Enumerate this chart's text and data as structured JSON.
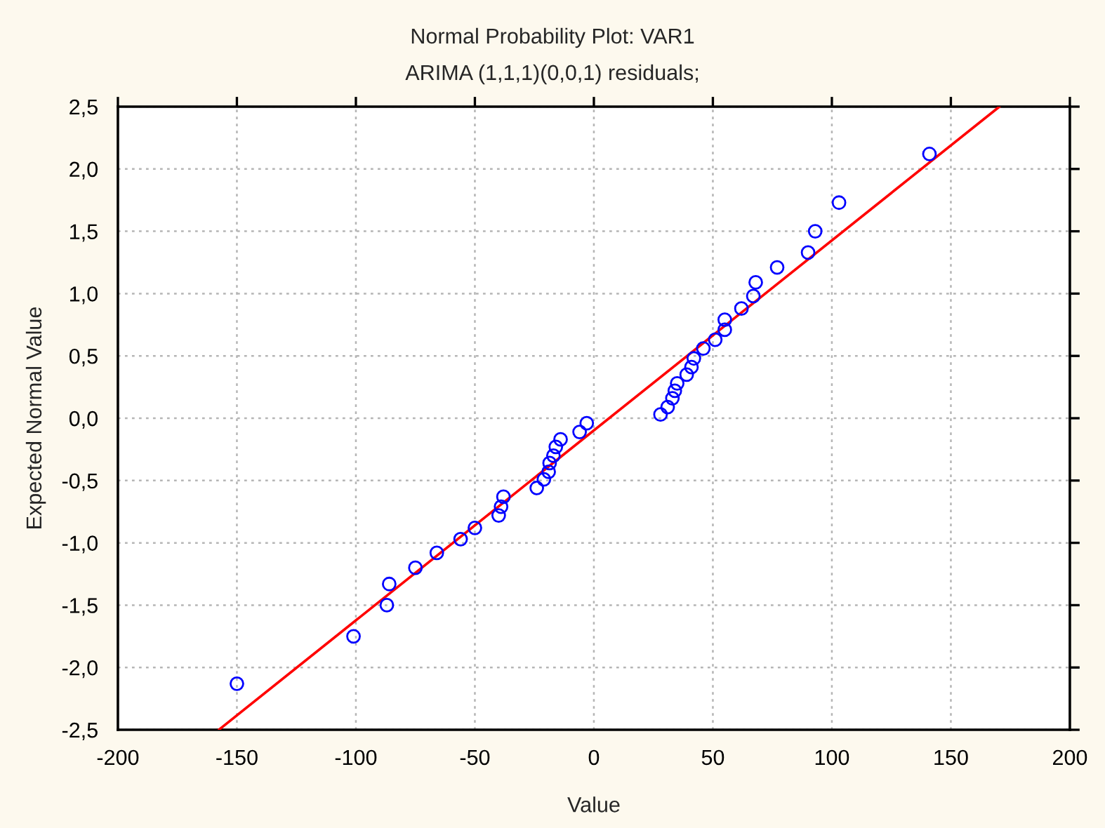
{
  "chart_data": {
    "type": "scatter",
    "title": "Normal Probability Plot: VAR1",
    "subtitle": "ARIMA (1,1,1)(0,0,1) residuals;",
    "xlabel": "Value",
    "ylabel": "Expected Normal Value",
    "series": [
      {
        "color": "#0000ff",
        "marker": "circle",
        "x": [
          -150,
          -101,
          -87,
          -86,
          -75,
          -66,
          -56,
          -50,
          -40,
          -39,
          -38,
          -24,
          -21,
          -19,
          -18.6,
          -17,
          -16,
          -14,
          -6,
          -3,
          28,
          31,
          33,
          34,
          35,
          39,
          41,
          42,
          46,
          51,
          55,
          55,
          62,
          67,
          68,
          77,
          90,
          93,
          103,
          141
        ],
        "values": [
          -2.13,
          -1.75,
          -1.5,
          -1.33,
          -1.2,
          -1.08,
          -0.97,
          -0.88,
          -0.78,
          -0.71,
          -0.63,
          -0.56,
          -0.49,
          -0.43,
          -0.36,
          -0.3,
          -0.23,
          -0.17,
          -0.11,
          -0.04,
          0.03,
          0.09,
          0.16,
          0.22,
          0.28,
          0.35,
          0.41,
          0.48,
          0.56,
          0.63,
          0.71,
          0.79,
          0.88,
          0.98,
          1.09,
          1.21,
          1.33,
          1.5,
          1.73,
          2.12
        ]
      },
      {
        "type": "line",
        "color": "#ff0000",
        "marker": "none",
        "line_style": "solid",
        "x": [
          -157.6,
          170.4
        ],
        "values": [
          -2.5,
          2.5
        ]
      }
    ],
    "xlim": [
      -200,
      200
    ],
    "xticks": [
      -200,
      -150,
      -100,
      -50,
      0,
      50,
      100,
      150,
      200
    ],
    "ylim": [
      -2.5,
      2.5
    ],
    "yticks": [
      {
        "value": -2.5,
        "label": "-2,5"
      },
      {
        "value": -2.0,
        "label": "-2,0"
      },
      {
        "value": -1.5,
        "label": "-1,5"
      },
      {
        "value": -1.0,
        "label": "-1,0"
      },
      {
        "value": -0.5,
        "label": "-0,5"
      },
      {
        "value": 0.0,
        "label": "0,0"
      },
      {
        "value": 0.5,
        "label": "0,5"
      },
      {
        "value": 1.0,
        "label": "1,0"
      },
      {
        "value": 1.5,
        "label": "1,5"
      },
      {
        "value": 2.0,
        "label": "2,0"
      },
      {
        "value": 2.5,
        "label": "2,5"
      }
    ],
    "grid": true
  }
}
